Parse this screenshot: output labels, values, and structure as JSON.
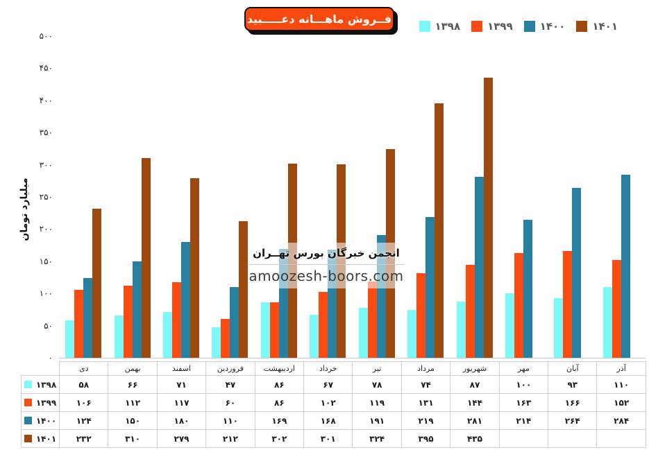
{
  "digits_fa": "۰۱۲۳۴۵۶۷۸۹",
  "title_badge": {
    "text": "فــروش ماهـــانه دعـــــبید",
    "bg": "#F8490E",
    "text_color": "#ffffff"
  },
  "legend": {
    "position": "top-right",
    "items": [
      {
        "label": "۱۳۹۸",
        "color": "#7DF8F8"
      },
      {
        "label": "۱۳۹۹",
        "color": "#FB4A12"
      },
      {
        "label": "۱۴۰۰",
        "color": "#27809F"
      },
      {
        "label": "۱۴۰۱",
        "color": "#9C4A10"
      }
    ]
  },
  "y_axis": {
    "title": "میلیارد تومان"
  },
  "watermark": {
    "line1": "انجمن خبرگان بورس تهــران",
    "line2": "amoozesh-boors.com"
  },
  "chart_data": {
    "type": "bar",
    "title": "فــروش ماهـــانه دعـــــبید",
    "categories": [
      "دی",
      "بهمن",
      "اسفند",
      "فروردین",
      "اردیبهشت",
      "خرداد",
      "تیر",
      "مرداد",
      "شهریور",
      "مهر",
      "آبان",
      "آذر"
    ],
    "series": [
      {
        "name": "۱۳۹۸",
        "year": 1398,
        "color": "#7DF8F8",
        "values": [
          58,
          66,
          71,
          47,
          86,
          67,
          78,
          74,
          87,
          100,
          93,
          110
        ]
      },
      {
        "name": "۱۳۹۹",
        "year": 1399,
        "color": "#FB4A12",
        "values": [
          106,
          112,
          117,
          60,
          86,
          102,
          119,
          131,
          144,
          163,
          166,
          152
        ]
      },
      {
        "name": "۱۴۰۰",
        "year": 1400,
        "color": "#27809F",
        "values": [
          124,
          150,
          180,
          110,
          169,
          168,
          191,
          219,
          281,
          214,
          264,
          284
        ]
      },
      {
        "name": "۱۴۰۱",
        "year": 1401,
        "color": "#9C4A10",
        "values": [
          232,
          310,
          279,
          212,
          302,
          301,
          324,
          395,
          435,
          null,
          null,
          null
        ]
      }
    ],
    "xlabel": "",
    "ylabel": "میلیارد تومان",
    "ylim": [
      0,
      500
    ],
    "ytick_step": 50,
    "grid": false,
    "legend_position": "top-right",
    "data_table_below_axis": true
  }
}
